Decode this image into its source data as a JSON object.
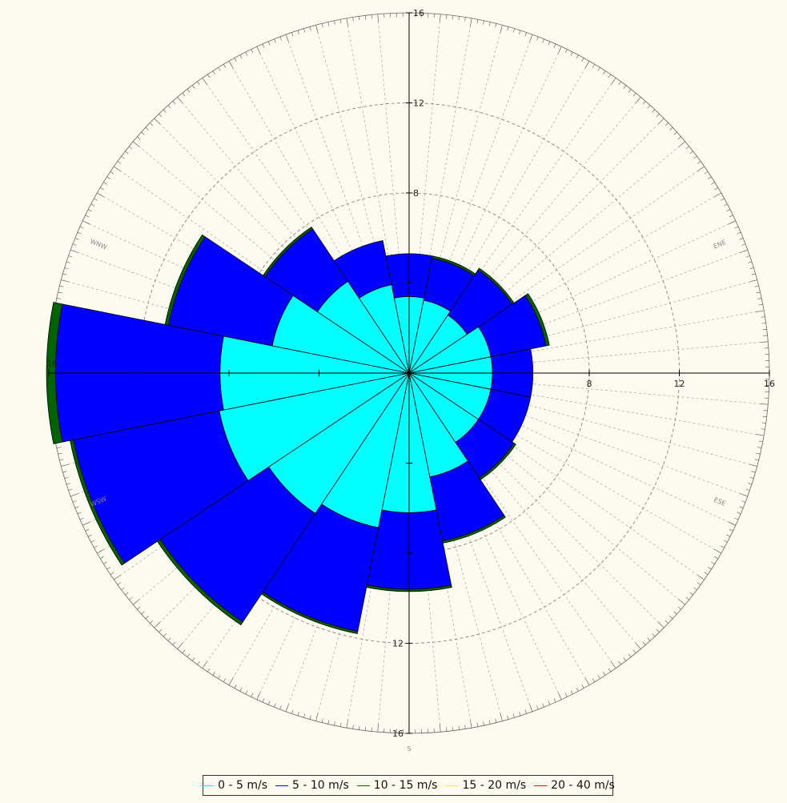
{
  "chart_data": {
    "type": "wind-rose",
    "title": "",
    "sectors": 16,
    "rlim": [
      0,
      16
    ],
    "radial_ticks": [
      8,
      12,
      16
    ],
    "radial_tick_labels": [
      "8",
      "12",
      "16"
    ],
    "left_tick_label": "16",
    "bottom_tick_labels": [
      "12",
      "16"
    ],
    "bottom_extra_label": "S",
    "direction_labels": [
      {
        "text": "ENE",
        "angle": 67.5
      },
      {
        "text": "ESE",
        "angle": 112.5
      },
      {
        "text": "WSW",
        "angle": 247.5
      },
      {
        "text": "WNW",
        "angle": 292.5
      }
    ],
    "direction_angles": [
      0,
      22.5,
      45,
      67.5,
      90,
      112.5,
      135,
      157.5,
      180,
      202.5,
      225,
      247.5,
      270,
      292.5,
      315,
      337.5
    ],
    "grid": true,
    "legend_position": "bottom",
    "series": [
      {
        "name": "0 - 5 m/s",
        "color": "#00ffff",
        "values": [
          3.4,
          3.3,
          3.1,
          3.7,
          3.7,
          3.7,
          3.7,
          4.7,
          6.2,
          7.0,
          7.5,
          8.6,
          8.4,
          6.2,
          4.9,
          4.0
        ]
      },
      {
        "name": "5 - 10 m/s",
        "color": "#0000ff",
        "values": [
          1.9,
          1.9,
          2.4,
          2.5,
          1.8,
          1.8,
          1.9,
          2.9,
          3.4,
          4.7,
          5.8,
          6.6,
          7.3,
          4.7,
          2.8,
          2.0
        ]
      },
      {
        "name": "10 - 15 m/s",
        "color": "#006400",
        "values": [
          0.0,
          0.1,
          0.1,
          0.15,
          0.0,
          0.0,
          0.1,
          0.1,
          0.1,
          0.1,
          0.15,
          0.15,
          0.4,
          0.15,
          0.1,
          0.0
        ]
      },
      {
        "name": "15 - 20 m/s",
        "color": "#ffff00",
        "values": [
          0,
          0,
          0,
          0,
          0,
          0,
          0,
          0,
          0,
          0,
          0,
          0,
          0,
          0,
          0,
          0
        ]
      },
      {
        "name": "20 - 40 m/s",
        "color": "#ff0000",
        "values": [
          0,
          0,
          0,
          0,
          0,
          0,
          0,
          0,
          0,
          0,
          0,
          0,
          0,
          0,
          0,
          0
        ]
      }
    ]
  }
}
